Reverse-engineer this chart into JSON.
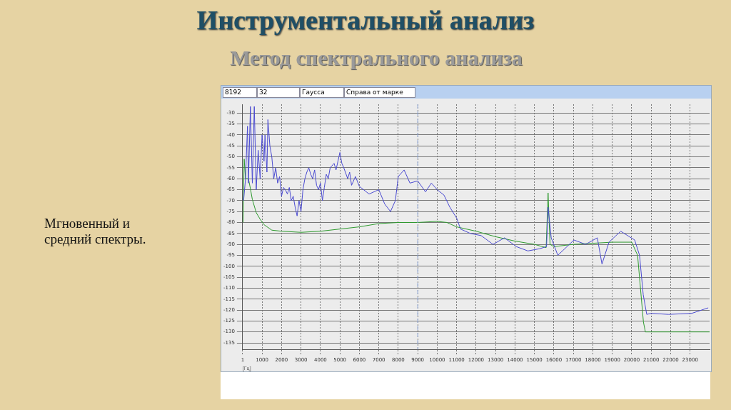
{
  "chart_data": {
    "type": "line",
    "title": "Инструментальный анализ",
    "subtitle": "Метод спектрального анализа",
    "xlabel": "[Гц]",
    "annotations": [
      "Мгновенный и средний спектры.",
      "8192",
      "32",
      "Гаусса",
      "Справа от марке"
    ],
    "xlim": [
      1,
      24000
    ],
    "xticks": [
      1,
      1000,
      2000,
      3000,
      4000,
      5000,
      6000,
      7000,
      8000,
      9000,
      10000,
      11000,
      12000,
      13000,
      14000,
      15000,
      16000,
      17000,
      18000,
      19000,
      20000,
      21000,
      22000,
      23000
    ],
    "ylim": [
      -138,
      -26
    ],
    "yticks": [
      -135,
      -130,
      -125,
      -120,
      -115,
      -110,
      -105,
      -100,
      -95,
      -90,
      -85,
      -80,
      -75,
      -70,
      -65,
      -60,
      -55,
      -50,
      -45,
      -40,
      -35,
      -30
    ],
    "grid": true,
    "line_style": "solid",
    "marker": "none",
    "legend": false,
    "ref_lines": [
      {
        "axis": "x",
        "value": 9000,
        "color": "#8fa8d8",
        "line_style": "dashed"
      }
    ],
    "series": [
      {
        "color": "#4a4ad0",
        "x": [
          50,
          150,
          250,
          300,
          400,
          500,
          600,
          700,
          800,
          900,
          1000,
          1100,
          1150,
          1250,
          1300,
          1400,
          1500,
          1600,
          1700,
          1800,
          1900,
          2000,
          2100,
          2200,
          2300,
          2400,
          2500,
          2600,
          2700,
          2800,
          2900,
          3000,
          3100,
          3200,
          3300,
          3400,
          3500,
          3600,
          3700,
          3800,
          3900,
          4000,
          4100,
          4200,
          4300,
          4400,
          4500,
          4700,
          4800,
          5000,
          5100,
          5200,
          5400,
          5500,
          5600,
          5800,
          6000,
          6500,
          7000,
          7300,
          7600,
          7850,
          8000,
          8300,
          8600,
          9000,
          9400,
          9700,
          10000,
          10350,
          10650,
          11000,
          11200,
          11700,
          12260,
          12870,
          13460,
          14060,
          14660,
          15260,
          15620,
          15700,
          15860,
          16200,
          17030,
          17630,
          18230,
          18470,
          18830,
          19430,
          20150,
          20400,
          20590,
          20770,
          21000,
          21890,
          23090,
          23930
        ],
        "values": [
          -70,
          -60,
          -36,
          -62,
          -27,
          -62,
          -27,
          -65,
          -47,
          -60,
          -40,
          -52,
          -40,
          -57,
          -33,
          -45,
          -50,
          -60,
          -55,
          -62,
          -59,
          -68,
          -64,
          -65,
          -67,
          -64,
          -70,
          -68,
          -73,
          -77,
          -70,
          -75,
          -65,
          -60,
          -57,
          -55,
          -58,
          -60,
          -56,
          -63,
          -65,
          -62,
          -70,
          -64,
          -58,
          -60,
          -55,
          -53,
          -56,
          -48,
          -53,
          -55,
          -60,
          -57,
          -63,
          -59,
          -63.5,
          -67,
          -65,
          -71.5,
          -75,
          -70,
          -59,
          -56,
          -62,
          -61,
          -66,
          -62,
          -65,
          -67.5,
          -73,
          -78,
          -83,
          -85,
          -86,
          -90,
          -87,
          -91,
          -93,
          -92,
          -91,
          -73,
          -87,
          -95,
          -88,
          -90,
          -87,
          -99,
          -89,
          -84,
          -88,
          -95,
          -113,
          -122,
          -121.5,
          -122,
          -121.5,
          -119
        ]
      },
      {
        "color": "#2e9a2e",
        "x": [
          20,
          80,
          150,
          300,
          400,
          500,
          700,
          900,
          1100,
          1500,
          2000,
          3000,
          4000,
          5000,
          6000,
          7000,
          8000,
          9000,
          10000,
          10500,
          11000,
          12000,
          13000,
          14000,
          15000,
          15600,
          15700,
          15800,
          16000,
          17000,
          18000,
          19000,
          20000,
          20300,
          20600,
          20700,
          22000,
          24000
        ],
        "values": [
          -80,
          -51,
          -60,
          -60,
          -64.5,
          -69.5,
          -75.5,
          -78.5,
          -81,
          -83.5,
          -84,
          -84.5,
          -84,
          -83,
          -82,
          -80.5,
          -80,
          -80,
          -79.5,
          -80,
          -82,
          -84,
          -86.5,
          -88.5,
          -90,
          -91.5,
          -66.5,
          -90,
          -91,
          -90,
          -89.5,
          -89,
          -89,
          -95,
          -125.5,
          -130,
          -130,
          -130
        ]
      }
    ]
  }
}
